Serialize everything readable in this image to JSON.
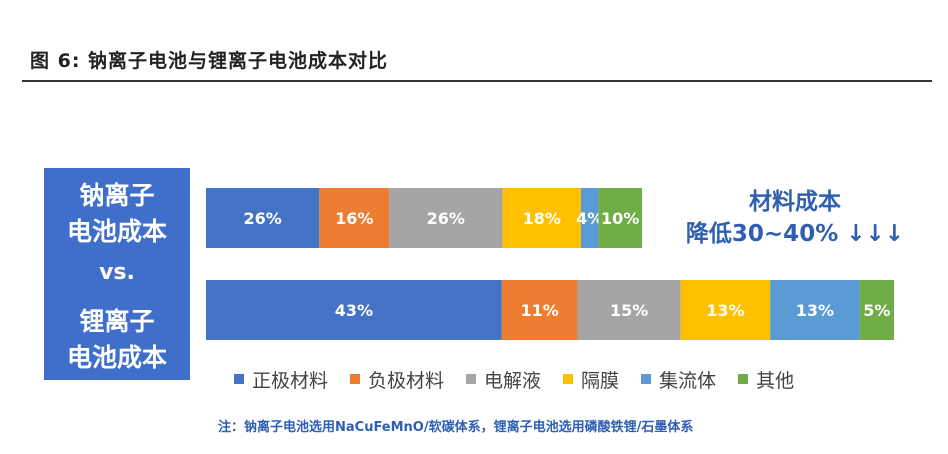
{
  "figure": {
    "title": "图 6:  钠离子电池与锂离子电池成本对比"
  },
  "panel": {
    "sodium_line1": "钠离子",
    "sodium_line2": "电池成本",
    "vs": "vs.",
    "lithium_line1": "锂离子",
    "lithium_line2": "电池成本"
  },
  "reduction": {
    "line1": "材料成本",
    "line2": "降低30~40%",
    "arrows": "↓↓↓"
  },
  "note": "注：钠离子电池选用NaCuFeMnO/软碳体系，锂离子电池选用磷酸铁锂/石墨体系",
  "chart_data": {
    "type": "bar",
    "orientation": "horizontal",
    "stacked": true,
    "categories": [
      "钠离子电池成本",
      "锂离子电池成本"
    ],
    "series": [
      {
        "name": "正极材料",
        "values": [
          26,
          43
        ],
        "labels": [
          "26%",
          "43%"
        ],
        "color": "#4472c4"
      },
      {
        "name": "负极材料",
        "values": [
          16,
          11
        ],
        "labels": [
          "16%",
          "11%"
        ],
        "color": "#ed7d31"
      },
      {
        "name": "电解液",
        "values": [
          26,
          15
        ],
        "labels": [
          "26%",
          "15%"
        ],
        "color": "#a5a5a5"
      },
      {
        "name": "隔膜",
        "values": [
          18,
          13
        ],
        "labels": [
          "18%",
          "13%"
        ],
        "color": "#ffc000"
      },
      {
        "name": "集流体",
        "values": [
          4,
          13
        ],
        "labels": [
          "4%",
          "13%"
        ],
        "color": "#5b9bd5"
      },
      {
        "name": "其他",
        "values": [
          10,
          5
        ],
        "labels": [
          "10%",
          "5%"
        ],
        "color": "#70ad47"
      }
    ],
    "legend_position": "bottom",
    "grid": false
  }
}
